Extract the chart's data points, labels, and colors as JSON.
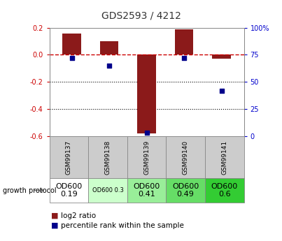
{
  "title": "GDS2593 / 4212",
  "samples": [
    "GSM99137",
    "GSM99138",
    "GSM99139",
    "GSM99140",
    "GSM99141"
  ],
  "log2_ratios": [
    0.155,
    0.1,
    -0.58,
    0.19,
    -0.03
  ],
  "percentile_ranks": [
    72,
    65,
    3,
    72,
    42
  ],
  "ylim_left": [
    -0.6,
    0.2
  ],
  "ylim_right": [
    0,
    100
  ],
  "yticks_left": [
    0.2,
    0.0,
    -0.2,
    -0.4,
    -0.6
  ],
  "yticks_right": [
    100,
    75,
    50,
    25,
    0
  ],
  "bar_color": "#8B1A1A",
  "dot_color": "#00008B",
  "dashed_line_color": "#CC0000",
  "dotted_line_color": "#000000",
  "growth_protocol_labels": [
    "OD600\n0.19",
    "OD600 0.3",
    "OD600\n0.41",
    "OD600\n0.49",
    "OD600\n0.6"
  ],
  "growth_protocol_colors": [
    "#ffffff",
    "#ccffcc",
    "#99ee99",
    "#66dd66",
    "#33cc33"
  ],
  "growth_protocol_text_sizes": [
    8,
    6,
    8,
    8,
    8
  ],
  "legend_bar_label": "log2 ratio",
  "legend_dot_label": "percentile rank within the sample",
  "title_color": "#333333",
  "left_tick_color": "#CC0000",
  "right_tick_color": "#0000CC"
}
